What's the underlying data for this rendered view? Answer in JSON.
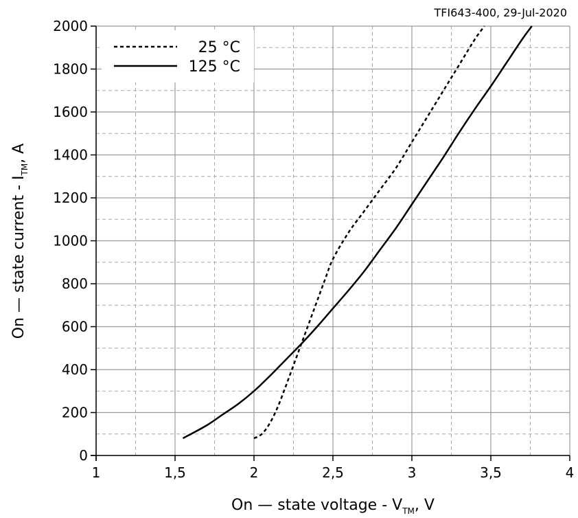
{
  "chart_data": {
    "type": "line",
    "caption": "TFI643-400, 29-Jul-2020",
    "xlabel": {
      "main": "On — state voltage - V",
      "sub": "TM",
      "suffix": ", V"
    },
    "ylabel": {
      "main": "On — state current - I",
      "sub": "TM",
      "suffix": ", A"
    },
    "xlim": [
      1,
      4
    ],
    "ylim": [
      0,
      2000
    ],
    "xticks": [
      1,
      1.5,
      2,
      2.5,
      3,
      3.5,
      4
    ],
    "xtick_labels": [
      "1",
      "1,5",
      "2",
      "2,5",
      "3",
      "3,5",
      "4"
    ],
    "yticks": [
      0,
      200,
      400,
      600,
      800,
      1000,
      1200,
      1400,
      1600,
      1800,
      2000
    ],
    "ytick_labels": [
      "0",
      "200",
      "400",
      "600",
      "800",
      "1000",
      "1200",
      "1400",
      "1600",
      "1800",
      "2000"
    ],
    "grid": {
      "major": true,
      "minor": true,
      "x_minor_step": 0.25,
      "y_minor_step": 100
    },
    "legend_position": "top-left",
    "series": [
      {
        "name": "25 °C",
        "style": "dotted",
        "color": "#000000",
        "x": [
          2.0,
          2.05,
          2.1,
          2.15,
          2.2,
          2.25,
          2.3,
          2.35,
          2.4,
          2.45,
          2.5,
          2.6,
          2.7,
          2.8,
          2.9,
          3.0,
          3.1,
          3.2,
          3.3,
          3.4,
          3.46
        ],
        "y": [
          80,
          100,
          150,
          225,
          320,
          420,
          520,
          620,
          720,
          820,
          915,
          1040,
          1140,
          1240,
          1340,
          1460,
          1580,
          1700,
          1820,
          1940,
          2000
        ]
      },
      {
        "name": "125 °C",
        "style": "solid",
        "color": "#000000",
        "x": [
          1.55,
          1.7,
          1.8,
          1.9,
          2.0,
          2.1,
          2.2,
          2.3,
          2.4,
          2.5,
          2.6,
          2.7,
          2.8,
          2.9,
          3.0,
          3.1,
          3.2,
          3.3,
          3.4,
          3.5,
          3.6,
          3.7,
          3.76
        ],
        "y": [
          80,
          140,
          190,
          240,
          300,
          370,
          445,
          520,
          600,
          685,
          770,
          860,
          960,
          1060,
          1170,
          1280,
          1390,
          1505,
          1615,
          1720,
          1830,
          1940,
          2000
        ]
      }
    ]
  }
}
